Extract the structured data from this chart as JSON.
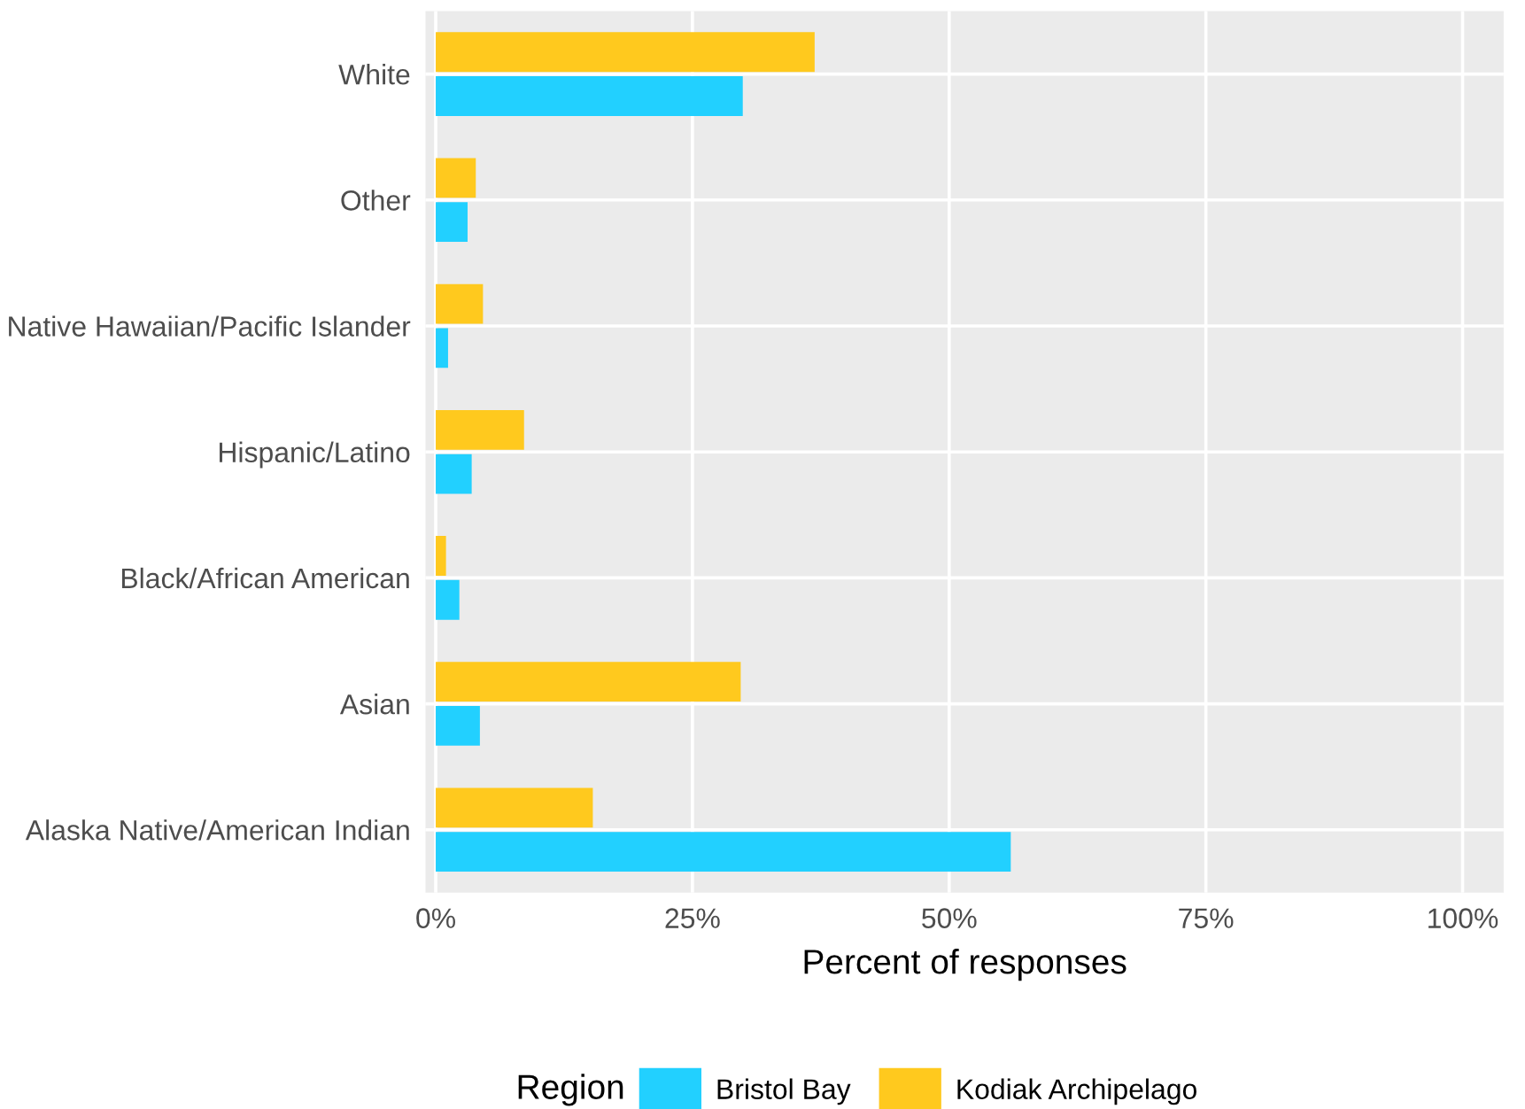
{
  "chart_data": {
    "type": "bar",
    "orientation": "horizontal",
    "xlabel": "Percent of responses",
    "legend_title": "Region",
    "legend": "bottom",
    "grid": true,
    "categories": [
      "White",
      "Other",
      "Native Hawaiian/Pacific Islander",
      "Hispanic/Latino",
      "Black/African American",
      "Asian",
      "Alaska Native/American Indian"
    ],
    "series": [
      {
        "name": "Bristol Bay",
        "color": "#22d0ff",
        "values": [
          29.9,
          3.1,
          1.2,
          3.5,
          2.3,
          4.3,
          56.0
        ]
      },
      {
        "name": "Kodiak Archipelago",
        "color": "#ffc91e",
        "values": [
          36.9,
          3.9,
          4.6,
          8.6,
          1.0,
          29.7,
          15.3
        ]
      }
    ],
    "xlim": [
      -1,
      104
    ],
    "xticks": [
      {
        "value": 0,
        "label": "0%"
      },
      {
        "value": 25,
        "label": "25%"
      },
      {
        "value": 50,
        "label": "50%"
      },
      {
        "value": 75,
        "label": "75%"
      },
      {
        "value": 100,
        "label": "100%"
      }
    ]
  }
}
